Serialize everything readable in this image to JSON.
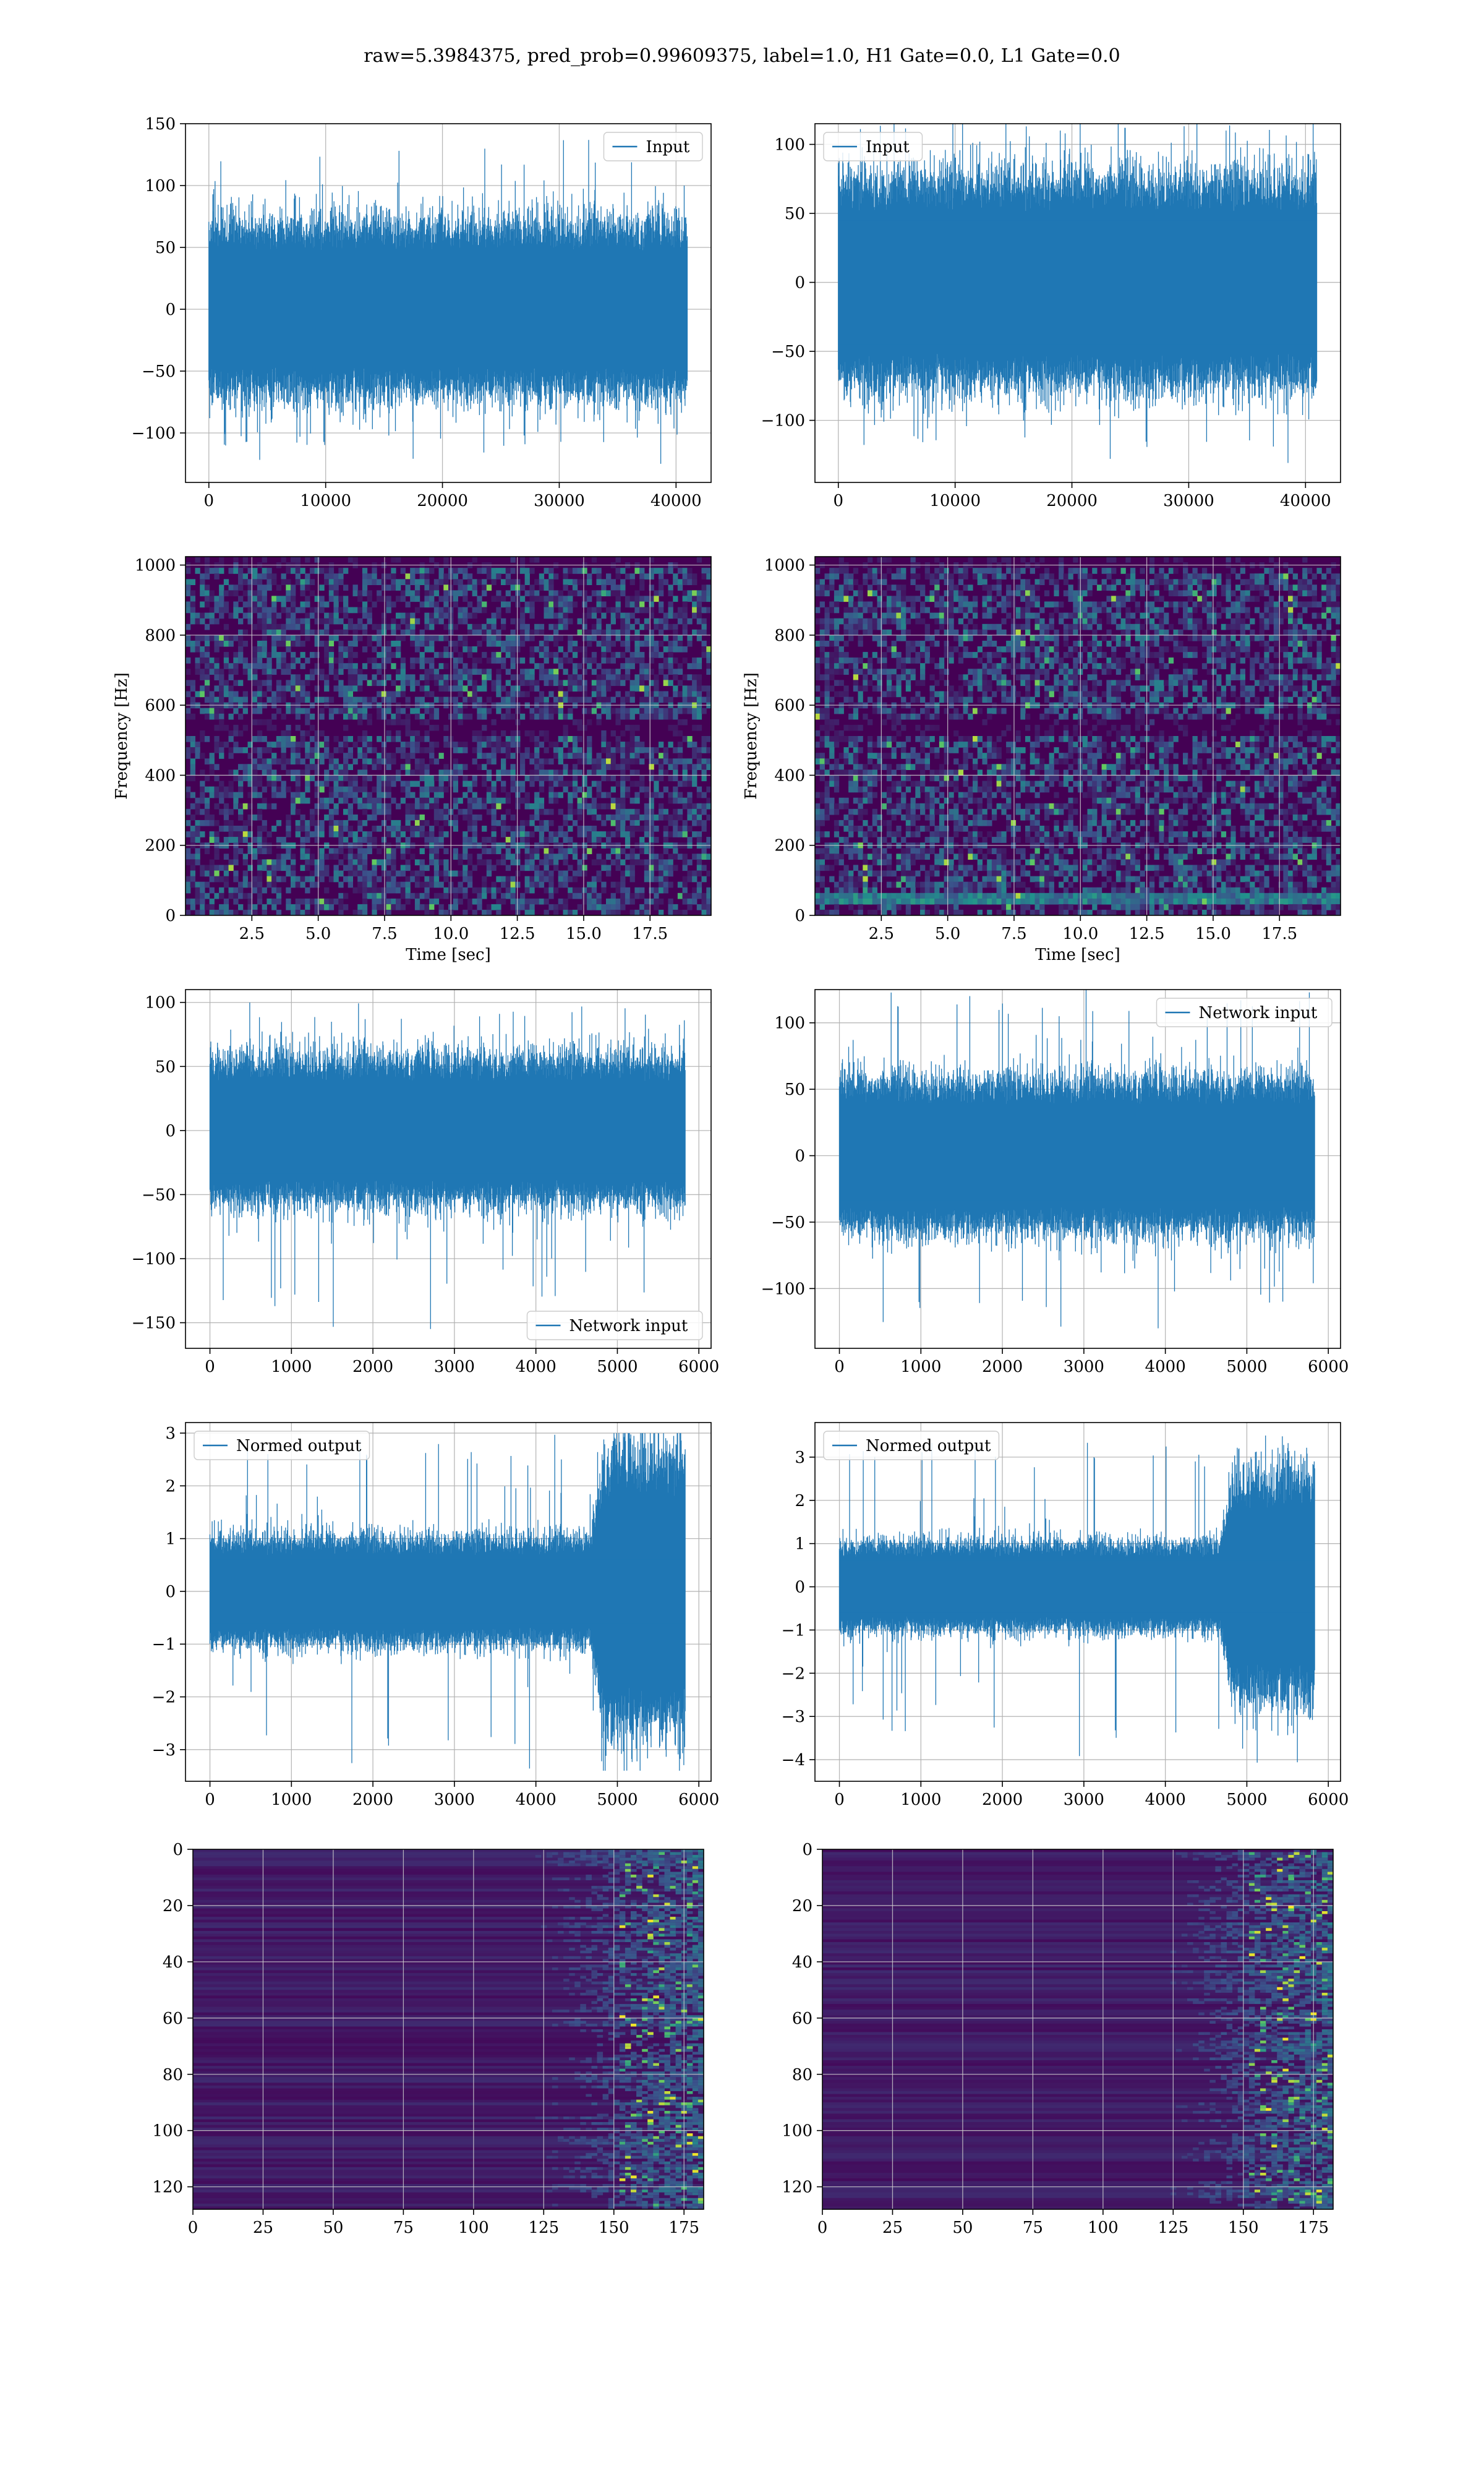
{
  "figure": {
    "suptitle": "raw=5.3984375, pred_prob=0.99609375, label=1.0, H1 Gate=0.0, L1 Gate=0.0",
    "colors": {
      "line": "#1f77b4",
      "grid": "#b0b0b0",
      "viridis_low": "#440154",
      "viridis_mid": "#21918c",
      "viridis_high": "#fde725"
    }
  },
  "chart_data": [
    {
      "id": "h1_input",
      "type": "line",
      "legend": [
        "Input"
      ],
      "legend_loc": "upper right",
      "xlim": [
        -2000,
        43000
      ],
      "ylim": [
        -140,
        150
      ],
      "xticks": [
        0,
        10000,
        20000,
        30000,
        40000
      ],
      "xtick_labels": [
        "0",
        "10000",
        "20000",
        "30000",
        "40000"
      ],
      "yticks": [
        -100,
        -50,
        0,
        50,
        100,
        150
      ],
      "ytick_labels": [
        "−100",
        "−50",
        "0",
        "50",
        "100",
        "150"
      ],
      "series": [
        {
          "name": "Input",
          "n_samples": 40960,
          "x_range": [
            0,
            40960
          ],
          "envelope": [
            -125,
            138
          ],
          "bulk": [
            -55,
            55
          ]
        }
      ],
      "grid": true
    },
    {
      "id": "l1_input",
      "type": "line",
      "legend": [
        "Input"
      ],
      "legend_loc": "upper left",
      "xlim": [
        -2000,
        43000
      ],
      "ylim": [
        -145,
        115
      ],
      "xticks": [
        0,
        10000,
        20000,
        30000,
        40000
      ],
      "xtick_labels": [
        "0",
        "10000",
        "20000",
        "30000",
        "40000"
      ],
      "yticks": [
        -100,
        -50,
        0,
        50,
        100
      ],
      "ytick_labels": [
        "−100",
        "−50",
        "0",
        "50",
        "100"
      ],
      "series": [
        {
          "name": "Input",
          "n_samples": 40960,
          "x_range": [
            0,
            40960
          ],
          "envelope": [
            -132,
            124
          ],
          "bulk": [
            -60,
            60
          ]
        }
      ],
      "grid": true
    },
    {
      "id": "h1_spectrogram",
      "type": "heatmap",
      "colormap": "viridis",
      "xlim": [
        0,
        19.8
      ],
      "ylim": [
        0,
        1024
      ],
      "xticks": [
        2.5,
        5.0,
        7.5,
        10.0,
        12.5,
        15.0,
        17.5
      ],
      "xtick_labels": [
        "2.5",
        "5.0",
        "7.5",
        "10.0",
        "12.5",
        "15.0",
        "17.5"
      ],
      "yticks": [
        0,
        200,
        400,
        600,
        800,
        1000
      ],
      "ytick_labels": [
        "0",
        "200",
        "400",
        "600",
        "800",
        "1000"
      ],
      "xlabel": "Time [sec]",
      "ylabel": "Frequency [Hz]",
      "grid": true
    },
    {
      "id": "l1_spectrogram",
      "type": "heatmap",
      "colormap": "viridis",
      "xlim": [
        0,
        19.8
      ],
      "ylim": [
        0,
        1024
      ],
      "xticks": [
        2.5,
        5.0,
        7.5,
        10.0,
        12.5,
        15.0,
        17.5
      ],
      "xtick_labels": [
        "2.5",
        "5.0",
        "7.5",
        "10.0",
        "12.5",
        "15.0",
        "17.5"
      ],
      "yticks": [
        0,
        200,
        400,
        600,
        800,
        1000
      ],
      "ytick_labels": [
        "0",
        "200",
        "400",
        "600",
        "800",
        "1000"
      ],
      "xlabel": "Time [sec]",
      "ylabel": "Frequency [Hz]",
      "grid": true
    },
    {
      "id": "h1_network_input",
      "type": "line",
      "legend": [
        "Network input"
      ],
      "legend_loc": "lower right",
      "xlim": [
        -300,
        6150
      ],
      "ylim": [
        -170,
        110
      ],
      "xticks": [
        0,
        1000,
        2000,
        3000,
        4000,
        5000,
        6000
      ],
      "xtick_labels": [
        "0",
        "1000",
        "2000",
        "3000",
        "4000",
        "5000",
        "6000"
      ],
      "yticks": [
        -150,
        -100,
        -50,
        0,
        50,
        100
      ],
      "ytick_labels": [
        "−150",
        "−100",
        "−50",
        "0",
        "50",
        "100"
      ],
      "series": [
        {
          "name": "Network input",
          "n_samples": 5832,
          "x_range": [
            0,
            5832
          ],
          "envelope": [
            -155,
            100
          ],
          "bulk": [
            -45,
            45
          ]
        }
      ],
      "grid": true
    },
    {
      "id": "l1_network_input",
      "type": "line",
      "legend": [
        "Network input"
      ],
      "legend_loc": "upper right",
      "xlim": [
        -300,
        6150
      ],
      "ylim": [
        -145,
        125
      ],
      "xticks": [
        0,
        1000,
        2000,
        3000,
        4000,
        5000,
        6000
      ],
      "xtick_labels": [
        "0",
        "1000",
        "2000",
        "3000",
        "4000",
        "5000",
        "6000"
      ],
      "yticks": [
        -100,
        -50,
        0,
        50,
        100
      ],
      "ytick_labels": [
        "−100",
        "−50",
        "0",
        "50",
        "100"
      ],
      "series": [
        {
          "name": "Network input",
          "n_samples": 5832,
          "x_range": [
            0,
            5832
          ],
          "envelope": [
            -130,
            128
          ],
          "bulk": [
            -45,
            45
          ]
        }
      ],
      "grid": true
    },
    {
      "id": "h1_normed_output",
      "type": "line",
      "legend": [
        "Normed output"
      ],
      "legend_loc": "upper left",
      "xlim": [
        -300,
        6150
      ],
      "ylim": [
        -3.6,
        3.2
      ],
      "xticks": [
        0,
        1000,
        2000,
        3000,
        4000,
        5000,
        6000
      ],
      "xtick_labels": [
        "0",
        "1000",
        "2000",
        "3000",
        "4000",
        "5000",
        "6000"
      ],
      "yticks": [
        -3,
        -2,
        -1,
        0,
        1,
        2,
        3
      ],
      "ytick_labels": [
        "−3",
        "−2",
        "−1",
        "0",
        "1",
        "2",
        "3"
      ],
      "series": [
        {
          "name": "Normed output",
          "n_samples": 5832,
          "x_range": [
            0,
            5832
          ],
          "envelope": [
            -3.4,
            3.0
          ],
          "bulk": [
            -0.8,
            0.8
          ]
        }
      ],
      "grid": true
    },
    {
      "id": "l1_normed_output",
      "type": "line",
      "legend": [
        "Normed output"
      ],
      "legend_loc": "upper left",
      "xlim": [
        -300,
        6150
      ],
      "ylim": [
        -4.5,
        3.8
      ],
      "xticks": [
        0,
        1000,
        2000,
        3000,
        4000,
        5000,
        6000
      ],
      "xtick_labels": [
        "0",
        "1000",
        "2000",
        "3000",
        "4000",
        "5000",
        "6000"
      ],
      "yticks": [
        -4,
        -3,
        -2,
        -1,
        0,
        1,
        2,
        3
      ],
      "ytick_labels": [
        "−4",
        "−3",
        "−2",
        "−1",
        "0",
        "1",
        "2",
        "3"
      ],
      "series": [
        {
          "name": "Normed output",
          "n_samples": 5832,
          "x_range": [
            0,
            5832
          ],
          "envelope": [
            -4.1,
            3.5
          ],
          "bulk": [
            -0.8,
            0.8
          ]
        }
      ],
      "grid": true
    },
    {
      "id": "h1_feature_map",
      "type": "heatmap",
      "colormap": "viridis",
      "xlim": [
        0,
        182
      ],
      "ylim": [
        128,
        0
      ],
      "xticks": [
        0,
        25,
        50,
        75,
        100,
        125,
        150,
        175
      ],
      "xtick_labels": [
        "0",
        "25",
        "50",
        "75",
        "100",
        "125",
        "150",
        "175"
      ],
      "yticks": [
        0,
        20,
        40,
        60,
        80,
        100,
        120
      ],
      "ytick_labels": [
        "0",
        "20",
        "40",
        "60",
        "80",
        "100",
        "120"
      ],
      "grid": true
    },
    {
      "id": "l1_feature_map",
      "type": "heatmap",
      "colormap": "viridis",
      "xlim": [
        0,
        182
      ],
      "ylim": [
        128,
        0
      ],
      "xticks": [
        0,
        25,
        50,
        75,
        100,
        125,
        150,
        175
      ],
      "xtick_labels": [
        "0",
        "25",
        "50",
        "75",
        "100",
        "125",
        "150",
        "175"
      ],
      "yticks": [
        0,
        20,
        40,
        60,
        80,
        100,
        120
      ],
      "ytick_labels": [
        "0",
        "20",
        "40",
        "60",
        "80",
        "100",
        "120"
      ],
      "grid": true
    }
  ]
}
